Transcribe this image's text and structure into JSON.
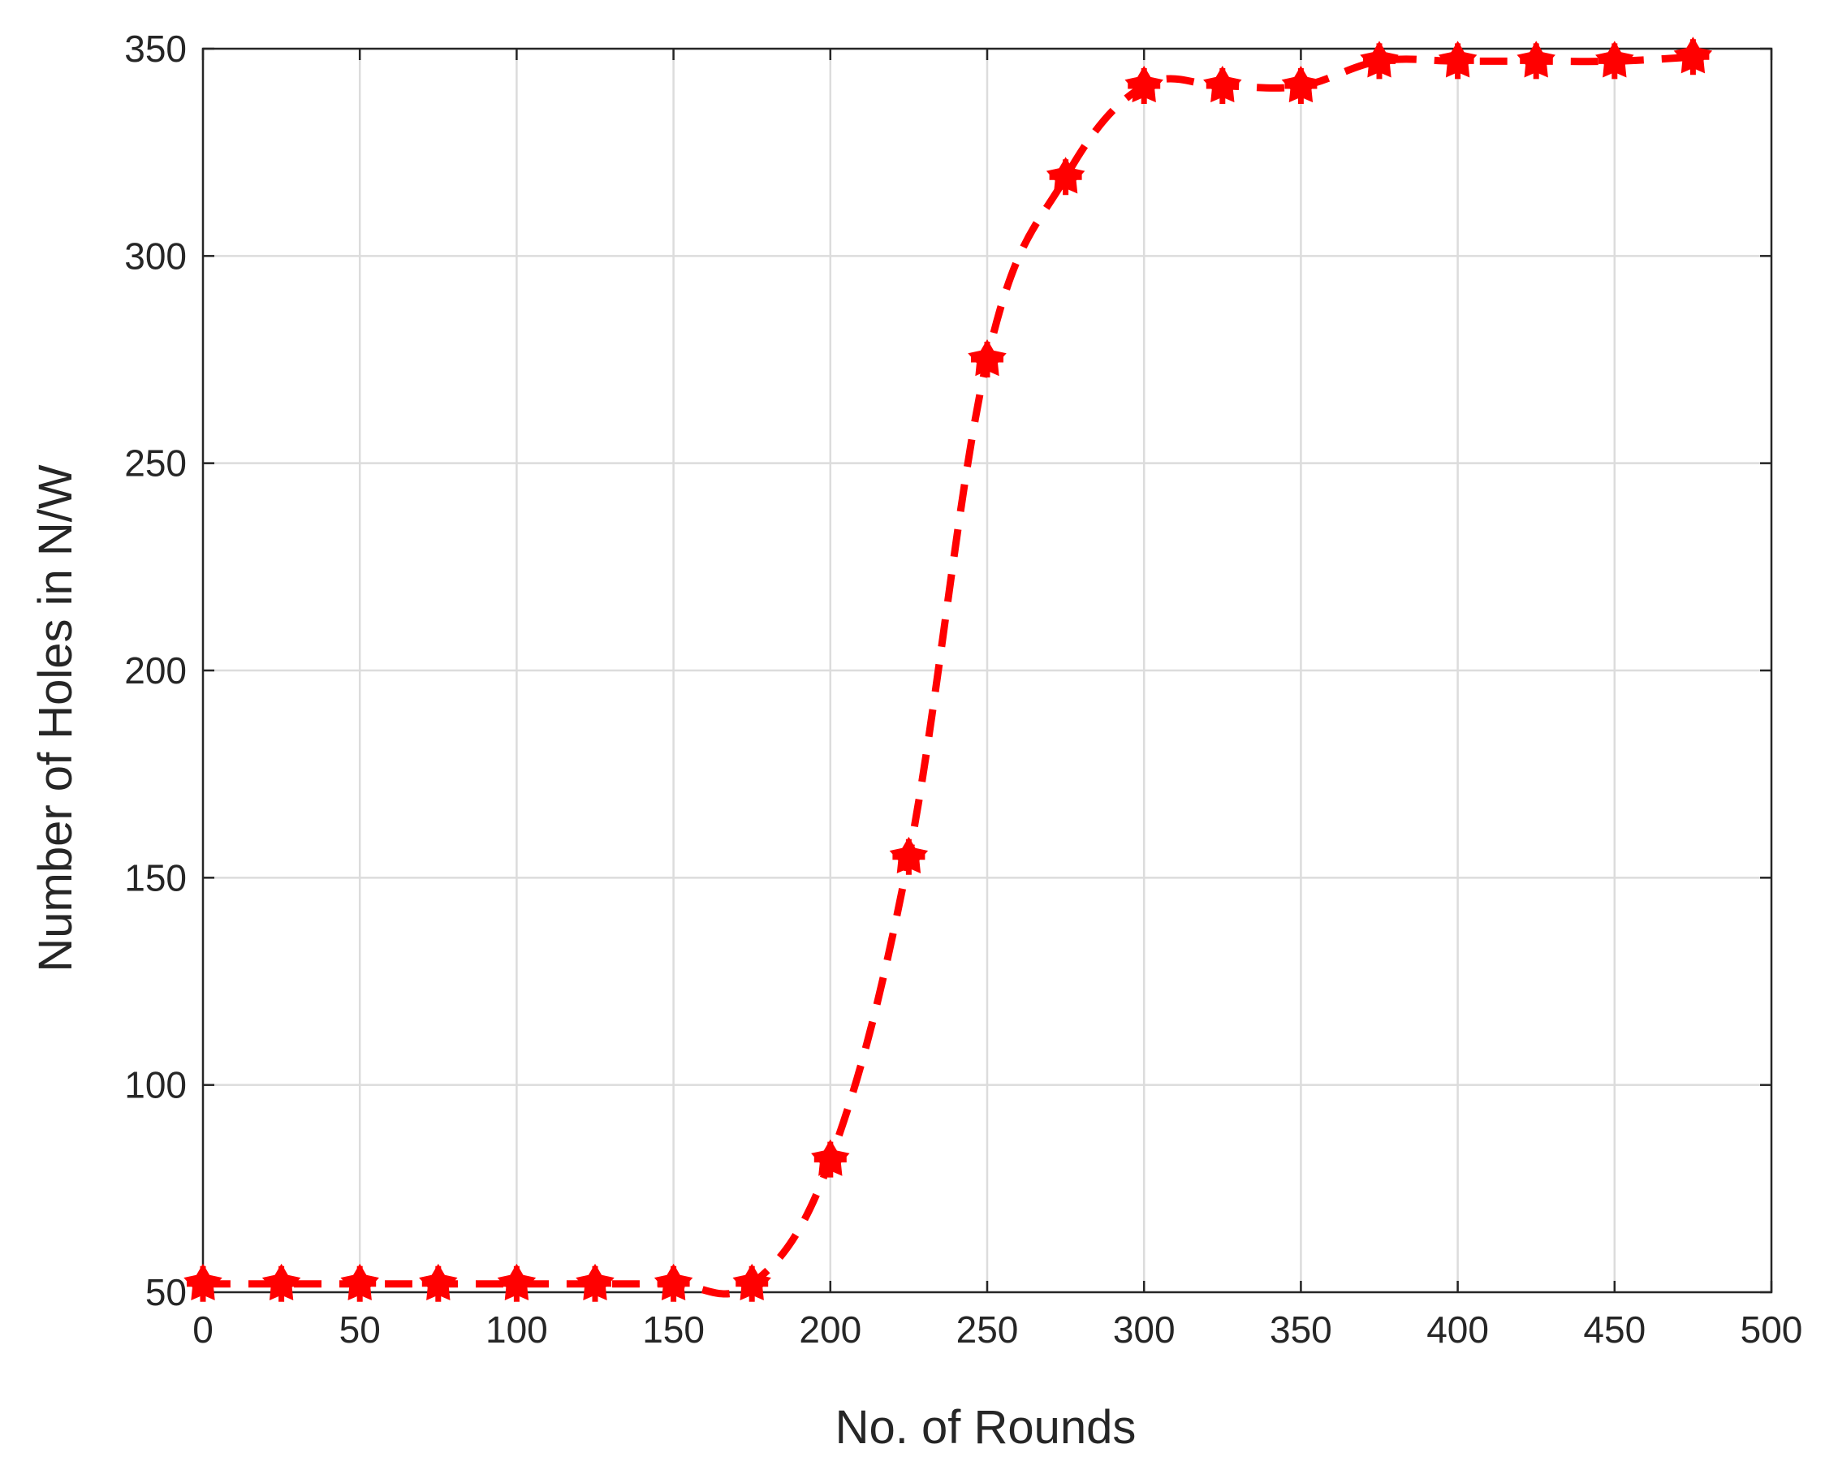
{
  "chart_data": {
    "type": "line",
    "title": "",
    "xlabel": "No. of Rounds",
    "ylabel": "Number of Holes in N/W",
    "xlim": [
      0,
      500
    ],
    "ylim": [
      50,
      350
    ],
    "xticks": [
      0,
      50,
      100,
      150,
      200,
      250,
      300,
      350,
      400,
      450,
      500
    ],
    "yticks": [
      50,
      100,
      150,
      200,
      250,
      300,
      350
    ],
    "grid": true,
    "series": [
      {
        "color": "#ff0000",
        "line_style": "dashed",
        "marker": "star",
        "x": [
          0,
          25,
          50,
          75,
          100,
          125,
          150,
          175,
          200,
          225,
          250,
          275,
          300,
          325,
          350,
          375,
          400,
          425,
          450,
          475
        ],
        "y": [
          52,
          52,
          52,
          52,
          52,
          52,
          52,
          52,
          82,
          155,
          275,
          319,
          341,
          341,
          341,
          347,
          347,
          347,
          347,
          348
        ]
      }
    ]
  }
}
